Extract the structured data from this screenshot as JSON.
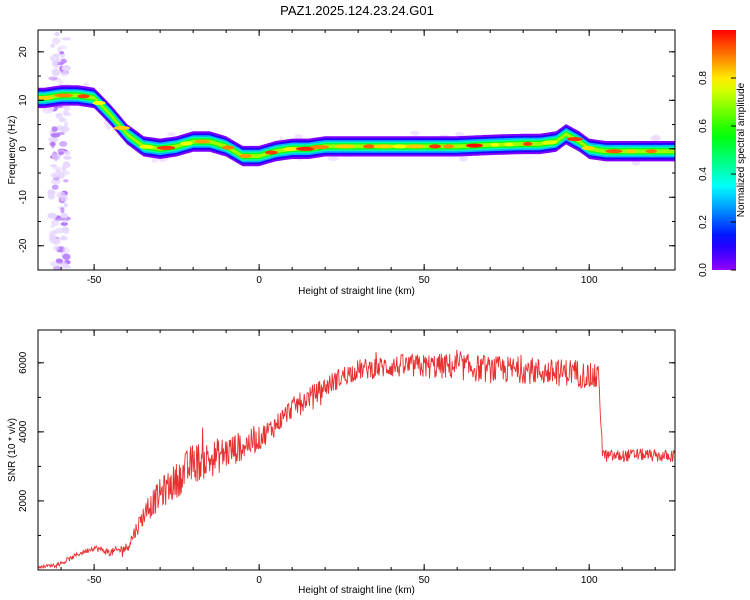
{
  "title": "PAZ1.2025.124.23.24.G01",
  "chart_data": [
    {
      "type": "heatmap",
      "xlabel": "Height of straight line (km)",
      "ylabel": "Frequency (Hz)",
      "xlim": [
        -67,
        126
      ],
      "ylim": [
        -25,
        24.5
      ],
      "xticks": [
        -50,
        0,
        50,
        100
      ],
      "yticks": [
        20,
        10,
        0,
        -10,
        -20
      ],
      "colorbar": {
        "label": "Normalized spectral amplitude",
        "range": [
          0,
          1
        ],
        "ticks": [
          "0.0",
          "0.2",
          "0.4",
          "0.6",
          "0.8"
        ],
        "tick_values": [
          0,
          0.2,
          0.4,
          0.6,
          0.8
        ]
      },
      "ridge": {
        "x": [
          -65,
          -60,
          -55,
          -50,
          -45,
          -40,
          -35,
          -30,
          -25,
          -20,
          -15,
          -10,
          -5,
          0,
          5,
          10,
          15,
          20,
          30,
          40,
          50,
          60,
          70,
          80,
          85,
          90,
          93,
          97,
          100,
          105,
          110,
          120,
          126
        ],
        "y": [
          10.5,
          11,
          11,
          10.5,
          7,
          3,
          0.5,
          0,
          0.5,
          1.5,
          1.5,
          0.5,
          -1.5,
          -1.5,
          -0.5,
          0,
          0,
          0.5,
          0.5,
          0.5,
          0.5,
          0.5,
          0.8,
          1,
          1,
          1.5,
          3,
          1.5,
          0,
          -0.5,
          -0.5,
          -0.5,
          -0.5
        ]
      },
      "noise_band_x": [
        -63,
        -58
      ]
    },
    {
      "type": "line",
      "xlabel": "Height of straight line (km)",
      "ylabel": "SNR (10 * v/v)",
      "xlim": [
        -67,
        126
      ],
      "ylim": [
        0,
        6950
      ],
      "xticks": [
        -50,
        0,
        50,
        100
      ],
      "yticks": [
        2000,
        4000,
        6000
      ],
      "color": "#e83030",
      "envelope": {
        "x": [
          -67,
          -60,
          -55,
          -50,
          -45,
          -40,
          -35,
          -30,
          -25,
          -20,
          -15,
          -10,
          -5,
          0,
          5,
          10,
          15,
          20,
          25,
          30,
          35,
          40,
          50,
          60,
          70,
          80,
          90,
          95,
          100,
          103,
          104,
          105,
          110,
          115,
          120,
          126
        ],
        "y": [
          80,
          180,
          450,
          650,
          500,
          650,
          1600,
          2200,
          2600,
          3100,
          3200,
          3400,
          3600,
          3800,
          4200,
          4700,
          5000,
          5300,
          5600,
          5800,
          5850,
          5900,
          5900,
          5900,
          5800,
          5800,
          5700,
          5750,
          5600,
          5550,
          3400,
          3300,
          3300,
          3350,
          3300,
          3300
        ]
      },
      "noise_amplitude": {
        "x": [
          -67,
          -50,
          -40,
          -30,
          -20,
          -10,
          0,
          10,
          30,
          60,
          100,
          103,
          104,
          126
        ],
        "y": [
          40,
          80,
          150,
          450,
          600,
          500,
          350,
          300,
          300,
          400,
          400,
          400,
          180,
          180
        ]
      }
    }
  ]
}
